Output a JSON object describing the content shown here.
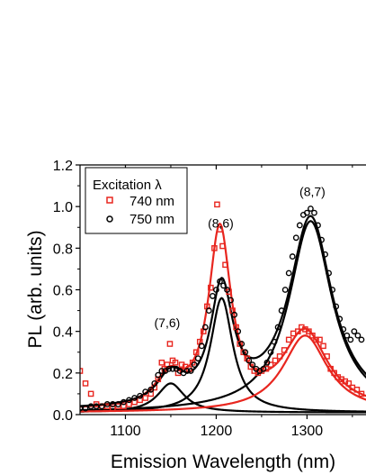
{
  "chart_data": {
    "type": "scatter",
    "title": "",
    "xlabel": "Emission Wavelength (nm)",
    "ylabel": "PL (arb. units)",
    "xlim": [
      1050,
      1365
    ],
    "ylim": [
      0,
      1.2
    ],
    "xticks": [
      1100,
      1200,
      1300
    ],
    "yticks": [
      0.0,
      0.2,
      0.4,
      0.6,
      0.8,
      1.0,
      1.2
    ],
    "ytick_labels": [
      "0.0",
      "0.2",
      "0.4",
      "0.6",
      "0.8",
      "1.0",
      "1.2"
    ],
    "grid": false,
    "legend": {
      "title": "Excitation λ",
      "placement": "top-left",
      "entries": [
        {
          "label": "740 nm",
          "marker": "square",
          "color": "#e8261f"
        },
        {
          "label": "750 nm",
          "marker": "circle",
          "color": "#000000"
        }
      ]
    },
    "annotations": [
      {
        "text": "(7,6)",
        "x": 1146,
        "y": 0.42
      },
      {
        "text": "(8,6)",
        "x": 1205,
        "y": 0.9
      },
      {
        "text": "(8,7)",
        "x": 1306,
        "y": 1.05
      }
    ],
    "series": [
      {
        "name": "740 nm",
        "kind": "markers",
        "marker": "square",
        "color": "#e8261f",
        "points": [
          [
            1050,
            0.21
          ],
          [
            1056,
            0.15
          ],
          [
            1062,
            0.1
          ],
          [
            1068,
            0.05
          ],
          [
            1074,
            0.04
          ],
          [
            1080,
            0.04
          ],
          [
            1086,
            0.03
          ],
          [
            1092,
            0.04
          ],
          [
            1098,
            0.04
          ],
          [
            1104,
            0.05
          ],
          [
            1110,
            0.06
          ],
          [
            1116,
            0.07
          ],
          [
            1122,
            0.08
          ],
          [
            1128,
            0.1
          ],
          [
            1132,
            0.13
          ],
          [
            1136,
            0.17
          ],
          [
            1140,
            0.25
          ],
          [
            1143,
            0.22
          ],
          [
            1146,
            0.24
          ],
          [
            1149,
            0.34
          ],
          [
            1152,
            0.26
          ],
          [
            1155,
            0.25
          ],
          [
            1158,
            0.2
          ],
          [
            1162,
            0.24
          ],
          [
            1166,
            0.23
          ],
          [
            1170,
            0.22
          ],
          [
            1174,
            0.25
          ],
          [
            1178,
            0.3
          ],
          [
            1182,
            0.35
          ],
          [
            1186,
            0.4
          ],
          [
            1190,
            0.52
          ],
          [
            1194,
            0.61
          ],
          [
            1198,
            0.8
          ],
          [
            1201,
            1.01
          ],
          [
            1204,
            0.89
          ],
          [
            1207,
            0.81
          ],
          [
            1210,
            0.72
          ],
          [
            1214,
            0.59
          ],
          [
            1218,
            0.5
          ],
          [
            1222,
            0.42
          ],
          [
            1226,
            0.34
          ],
          [
            1230,
            0.3
          ],
          [
            1234,
            0.27
          ],
          [
            1238,
            0.23
          ],
          [
            1242,
            0.21
          ],
          [
            1246,
            0.2
          ],
          [
            1250,
            0.21
          ],
          [
            1255,
            0.22
          ],
          [
            1260,
            0.24
          ],
          [
            1265,
            0.26
          ],
          [
            1270,
            0.28
          ],
          [
            1275,
            0.31
          ],
          [
            1280,
            0.36
          ],
          [
            1285,
            0.39
          ],
          [
            1290,
            0.4
          ],
          [
            1294,
            0.42
          ],
          [
            1298,
            0.41
          ],
          [
            1302,
            0.4
          ],
          [
            1306,
            0.38
          ],
          [
            1310,
            0.36
          ],
          [
            1314,
            0.36
          ],
          [
            1318,
            0.33
          ],
          [
            1322,
            0.28
          ],
          [
            1326,
            0.22
          ],
          [
            1330,
            0.2
          ],
          [
            1334,
            0.18
          ],
          [
            1338,
            0.17
          ],
          [
            1342,
            0.16
          ],
          [
            1346,
            0.15
          ],
          [
            1350,
            0.13
          ],
          [
            1355,
            0.12
          ],
          [
            1360,
            0.1
          ]
        ]
      },
      {
        "name": "750 nm",
        "kind": "markers",
        "marker": "circle",
        "color": "#000000",
        "points": [
          [
            1050,
            0.03
          ],
          [
            1056,
            0.03
          ],
          [
            1062,
            0.04
          ],
          [
            1068,
            0.04
          ],
          [
            1074,
            0.04
          ],
          [
            1080,
            0.05
          ],
          [
            1086,
            0.05
          ],
          [
            1092,
            0.05
          ],
          [
            1098,
            0.06
          ],
          [
            1104,
            0.07
          ],
          [
            1110,
            0.08
          ],
          [
            1116,
            0.09
          ],
          [
            1122,
            0.11
          ],
          [
            1128,
            0.12
          ],
          [
            1132,
            0.15
          ],
          [
            1136,
            0.19
          ],
          [
            1140,
            0.21
          ],
          [
            1144,
            0.21
          ],
          [
            1148,
            0.22
          ],
          [
            1152,
            0.22
          ],
          [
            1156,
            0.22
          ],
          [
            1160,
            0.21
          ],
          [
            1164,
            0.2
          ],
          [
            1168,
            0.21
          ],
          [
            1172,
            0.21
          ],
          [
            1176,
            0.24
          ],
          [
            1180,
            0.27
          ],
          [
            1184,
            0.33
          ],
          [
            1188,
            0.42
          ],
          [
            1192,
            0.5
          ],
          [
            1196,
            0.57
          ],
          [
            1200,
            0.6
          ],
          [
            1204,
            0.64
          ],
          [
            1208,
            0.62
          ],
          [
            1212,
            0.6
          ],
          [
            1216,
            0.55
          ],
          [
            1220,
            0.48
          ],
          [
            1224,
            0.4
          ],
          [
            1228,
            0.34
          ],
          [
            1232,
            0.3
          ],
          [
            1236,
            0.26
          ],
          [
            1240,
            0.24
          ],
          [
            1244,
            0.22
          ],
          [
            1248,
            0.21
          ],
          [
            1252,
            0.22
          ],
          [
            1256,
            0.25
          ],
          [
            1260,
            0.3
          ],
          [
            1264,
            0.35
          ],
          [
            1268,
            0.42
          ],
          [
            1272,
            0.5
          ],
          [
            1276,
            0.6
          ],
          [
            1280,
            0.68
          ],
          [
            1284,
            0.76
          ],
          [
            1288,
            0.85
          ],
          [
            1292,
            0.91
          ],
          [
            1296,
            0.96
          ],
          [
            1300,
            0.97
          ],
          [
            1304,
            0.99
          ],
          [
            1308,
            0.97
          ],
          [
            1312,
            0.91
          ],
          [
            1316,
            0.84
          ],
          [
            1320,
            0.77
          ],
          [
            1324,
            0.68
          ],
          [
            1328,
            0.6
          ],
          [
            1332,
            0.52
          ],
          [
            1336,
            0.46
          ],
          [
            1340,
            0.41
          ],
          [
            1344,
            0.38
          ],
          [
            1348,
            0.36
          ],
          [
            1352,
            0.4
          ],
          [
            1356,
            0.38
          ],
          [
            1360,
            0.36
          ]
        ]
      },
      {
        "name": "740 nm fit",
        "kind": "lorentzian-sum",
        "color": "#e8261f",
        "baseline": 0.02,
        "peaks": [
          {
            "center": 1148,
            "fwhm": 36,
            "height": 0.14
          },
          {
            "center": 1204,
            "fwhm": 30,
            "height": 0.85
          },
          {
            "center": 1298,
            "fwhm": 60,
            "height": 0.37
          }
        ]
      },
      {
        "name": "750 nm fit",
        "kind": "lorentzian-sum",
        "color": "#000000",
        "baseline": 0.02,
        "peaks": [
          {
            "center": 1150,
            "fwhm": 36,
            "height": 0.14
          },
          {
            "center": 1206,
            "fwhm": 30,
            "height": 0.55
          },
          {
            "center": 1304,
            "fwhm": 58,
            "height": 0.92
          }
        ]
      },
      {
        "name": "750 nm (7,6) component",
        "kind": "lorentzian",
        "color": "#000000",
        "baseline": 0.01,
        "center": 1150,
        "fwhm": 36,
        "height": 0.14
      },
      {
        "name": "750 nm (8,6) component",
        "kind": "lorentzian",
        "color": "#000000",
        "baseline": 0.01,
        "center": 1206,
        "fwhm": 30,
        "height": 0.55
      },
      {
        "name": "750 nm (8,7) component",
        "kind": "lorentzian",
        "color": "#000000",
        "baseline": 0.01,
        "center": 1304,
        "fwhm": 58,
        "height": 0.92
      },
      {
        "name": "740 nm (8,7) component",
        "kind": "lorentzian",
        "color": "#e8261f",
        "baseline": 0.01,
        "center": 1298,
        "fwhm": 60,
        "height": 0.37
      }
    ]
  }
}
